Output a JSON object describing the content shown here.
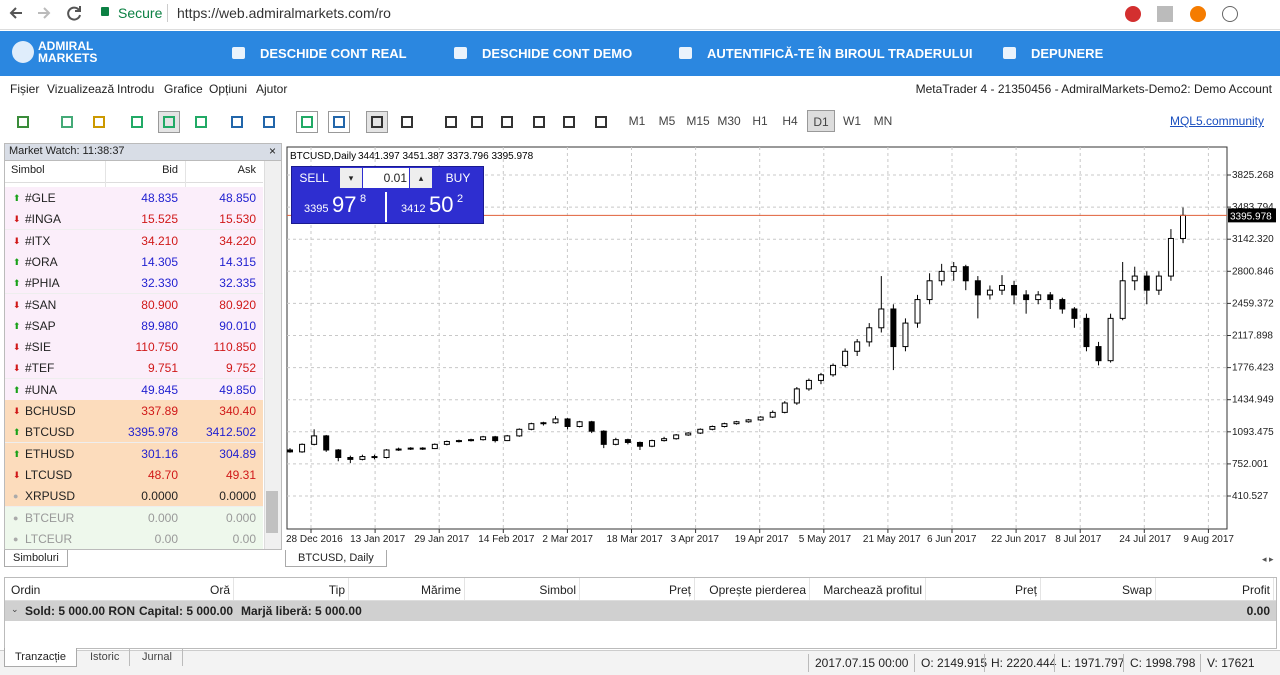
{
  "browser": {
    "secure": "Secure",
    "url": "https://web.admiralmarkets.com/ro"
  },
  "nav": {
    "logo": [
      "ADMIRAL",
      "MARKETS"
    ],
    "links": [
      "DESCHIDE CONT REAL",
      "DESCHIDE CONT DEMO",
      "AUTENTIFICĂ-TE ÎN BIROUL TRADERULUI",
      "DEPUNERE"
    ]
  },
  "menu": {
    "items": [
      "Fișier",
      "Vizualizează",
      "Introdu",
      "Grafice",
      "Opțiuni",
      "Ajutor"
    ],
    "account": "MetaTrader 4 - 21350456 - AdmiralMarkets-Demo2: Demo Account"
  },
  "toolbar": {
    "timeframes": [
      "M1",
      "M5",
      "M15",
      "M30",
      "H1",
      "H4",
      "D1",
      "W1",
      "MN"
    ],
    "active": "D1",
    "link": "MQL5.community"
  },
  "market_watch": {
    "title": "Market Watch: 11:38:37",
    "columns": [
      "Simbol",
      "Bid",
      "Ask"
    ],
    "tab": "Simboluri",
    "rows": [
      {
        "symbol": "#GLE",
        "bid": "48.835",
        "ask": "48.850",
        "dir": "up",
        "bg": "#fbeefa"
      },
      {
        "symbol": "#INGA",
        "bid": "15.525",
        "ask": "15.530",
        "dir": "down",
        "bg": "#fbeefa"
      },
      {
        "symbol": "#ITX",
        "bid": "34.210",
        "ask": "34.220",
        "dir": "down",
        "bg": "#fbeefa"
      },
      {
        "symbol": "#ORA",
        "bid": "14.305",
        "ask": "14.315",
        "dir": "up",
        "bg": "#fbeefa"
      },
      {
        "symbol": "#PHIA",
        "bid": "32.330",
        "ask": "32.335",
        "dir": "up",
        "bg": "#fbeefa"
      },
      {
        "symbol": "#SAN",
        "bid": "80.900",
        "ask": "80.920",
        "dir": "down",
        "bg": "#fbeefa"
      },
      {
        "symbol": "#SAP",
        "bid": "89.980",
        "ask": "90.010",
        "dir": "up",
        "bg": "#fbeefa"
      },
      {
        "symbol": "#SIE",
        "bid": "110.750",
        "ask": "110.850",
        "dir": "down",
        "bg": "#fbeefa"
      },
      {
        "symbol": "#TEF",
        "bid": "9.751",
        "ask": "9.752",
        "dir": "down",
        "bg": "#fbeefa"
      },
      {
        "symbol": "#UNA",
        "bid": "49.845",
        "ask": "49.850",
        "dir": "up",
        "bg": "#fbeefa"
      },
      {
        "symbol": "BCHUSD",
        "bid": "337.89",
        "ask": "340.40",
        "dir": "down",
        "bg": "#fcdcbc"
      },
      {
        "symbol": "BTCUSD",
        "bid": "3395.978",
        "ask": "3412.502",
        "dir": "up",
        "bg": "#fcdcbc"
      },
      {
        "symbol": "ETHUSD",
        "bid": "301.16",
        "ask": "304.89",
        "dir": "up",
        "bg": "#fcdcbc"
      },
      {
        "symbol": "LTCUSD",
        "bid": "48.70",
        "ask": "49.31",
        "dir": "down",
        "bg": "#fcdcbc"
      },
      {
        "symbol": "XRPUSD",
        "bid": "0.0000",
        "ask": "0.0000",
        "dir": "none",
        "bg": "#fcdcbc"
      },
      {
        "symbol": "BTCEUR",
        "bid": "0.000",
        "ask": "0.000",
        "dir": "none",
        "bg": "#eef8ec"
      },
      {
        "symbol": "LTCEUR",
        "bid": "0.00",
        "ask": "0.00",
        "dir": "none",
        "bg": "#eef8ec"
      }
    ]
  },
  "chart_data": {
    "type": "candlestick",
    "title": "BTCUSD,Daily",
    "ohlc_header": "3441.397 3451.387 3373.796 3395.978",
    "tab": "BTCUSD, Daily",
    "x_labels": [
      "28 Dec 2016",
      "13 Jan 2017",
      "29 Jan 2017",
      "14 Feb 2017",
      "2 Mar 2017",
      "18 Mar 2017",
      "3 Apr 2017",
      "19 Apr 2017",
      "5 May 2017",
      "21 May 2017",
      "6 Jun 2017",
      "22 Jun 2017",
      "8 Jul 2017",
      "24 Jul 2017",
      "9 Aug 2017"
    ],
    "ylim": [
      59.5,
      4123.1
    ],
    "yticks": [
      410.527,
      752.001,
      1093.475,
      1434.949,
      1776.423,
      2117.898,
      2459.372,
      2800.846,
      {
        "value": 3142.32,
        "label": "3142.320"
      },
      3483.794,
      3825.268
    ],
    "grid": true,
    "current_price": 3395.978,
    "price_line_color": "#e0603a",
    "candles": [
      [
        900,
        920,
        870,
        880
      ],
      [
        880,
        970,
        870,
        960
      ],
      [
        960,
        1120,
        950,
        1050
      ],
      [
        1050,
        1060,
        880,
        900
      ],
      [
        900,
        910,
        780,
        820
      ],
      [
        820,
        840,
        760,
        800
      ],
      [
        800,
        850,
        790,
        830
      ],
      [
        830,
        850,
        800,
        820
      ],
      [
        820,
        910,
        810,
        900
      ],
      [
        900,
        925,
        890,
        910
      ],
      [
        910,
        930,
        900,
        920
      ],
      [
        920,
        930,
        900,
        915
      ],
      [
        915,
        970,
        910,
        960
      ],
      [
        960,
        1000,
        950,
        990
      ],
      [
        990,
        1010,
        980,
        1000
      ],
      [
        1000,
        1020,
        990,
        1010
      ],
      [
        1010,
        1050,
        1000,
        1040
      ],
      [
        1040,
        1050,
        980,
        1000
      ],
      [
        1000,
        1060,
        995,
        1050
      ],
      [
        1050,
        1130,
        1040,
        1120
      ],
      [
        1120,
        1190,
        1110,
        1180
      ],
      [
        1180,
        1200,
        1160,
        1190
      ],
      [
        1190,
        1260,
        1180,
        1230
      ],
      [
        1230,
        1240,
        1120,
        1150
      ],
      [
        1150,
        1210,
        1140,
        1200
      ],
      [
        1200,
        1210,
        1080,
        1100
      ],
      [
        1100,
        1110,
        920,
        960
      ],
      [
        960,
        1030,
        950,
        1010
      ],
      [
        1010,
        1020,
        960,
        980
      ],
      [
        980,
        990,
        900,
        940
      ],
      [
        940,
        1010,
        930,
        1000
      ],
      [
        1000,
        1040,
        990,
        1020
      ],
      [
        1020,
        1070,
        1010,
        1060
      ],
      [
        1060,
        1090,
        1050,
        1080
      ],
      [
        1080,
        1130,
        1070,
        1120
      ],
      [
        1120,
        1160,
        1110,
        1150
      ],
      [
        1150,
        1190,
        1140,
        1180
      ],
      [
        1180,
        1210,
        1170,
        1200
      ],
      [
        1200,
        1230,
        1190,
        1220
      ],
      [
        1220,
        1260,
        1210,
        1250
      ],
      [
        1250,
        1320,
        1240,
        1300
      ],
      [
        1300,
        1420,
        1290,
        1400
      ],
      [
        1400,
        1570,
        1380,
        1550
      ],
      [
        1550,
        1660,
        1530,
        1640
      ],
      [
        1640,
        1720,
        1600,
        1700
      ],
      [
        1700,
        1820,
        1680,
        1800
      ],
      [
        1800,
        1980,
        1780,
        1950
      ],
      [
        1950,
        2080,
        1900,
        2050
      ],
      [
        2050,
        2250,
        2000,
        2200
      ],
      [
        2200,
        2750,
        2150,
        2400
      ],
      [
        2400,
        2450,
        1750,
        2000
      ],
      [
        2000,
        2300,
        1950,
        2250
      ],
      [
        2250,
        2550,
        2200,
        2500
      ],
      [
        2500,
        2780,
        2450,
        2700
      ],
      [
        2700,
        2880,
        2650,
        2800
      ],
      [
        2800,
        2900,
        2700,
        2850
      ],
      [
        2850,
        2870,
        2600,
        2700
      ],
      [
        2700,
        2750,
        2300,
        2550
      ],
      [
        2550,
        2650,
        2500,
        2600
      ],
      [
        2600,
        2760,
        2550,
        2650
      ],
      [
        2650,
        2700,
        2450,
        2550
      ],
      [
        2550,
        2600,
        2350,
        2500
      ],
      [
        2500,
        2590,
        2450,
        2550
      ],
      [
        2550,
        2580,
        2400,
        2500
      ],
      [
        2500,
        2520,
        2350,
        2400
      ],
      [
        2400,
        2420,
        2200,
        2300
      ],
      [
        2300,
        2350,
        1950,
        2000
      ],
      [
        2000,
        2050,
        1800,
        1850
      ],
      [
        1850,
        2350,
        1830,
        2300
      ],
      [
        2300,
        2900,
        2280,
        2700
      ],
      [
        2700,
        2850,
        2600,
        2750
      ],
      [
        2750,
        2800,
        2450,
        2600
      ],
      [
        2600,
        2800,
        2550,
        2750
      ],
      [
        2750,
        3250,
        2700,
        3150
      ],
      [
        3150,
        3480,
        3100,
        3396
      ]
    ],
    "trade_panel": {
      "sell": "SELL",
      "buy": "BUY",
      "lot": "0.01",
      "sell_price": [
        "3395",
        "97",
        "8"
      ],
      "buy_price": [
        "3412",
        "50",
        "2"
      ]
    }
  },
  "terminal": {
    "columns": [
      "Ordin",
      "Oră",
      "Tip",
      "Mărime",
      "Simbol",
      "Preț",
      "Oprește pierderea",
      "Marchează profitul",
      "Preț",
      "Swap",
      "Profit"
    ],
    "balance": [
      "Sold: 5 000.00 RON",
      "Capital: 5 000.00",
      "Marjă liberă: 5 000.00"
    ],
    "profit": "0.00",
    "tabs": [
      "Tranzacție",
      "Istoric",
      "Jurnal"
    ]
  },
  "status": [
    "2017.07.15 00:00",
    "O: 2149.915",
    "H: 2220.444",
    "L: 1971.797",
    "C: 1998.798",
    "V: 17621"
  ]
}
